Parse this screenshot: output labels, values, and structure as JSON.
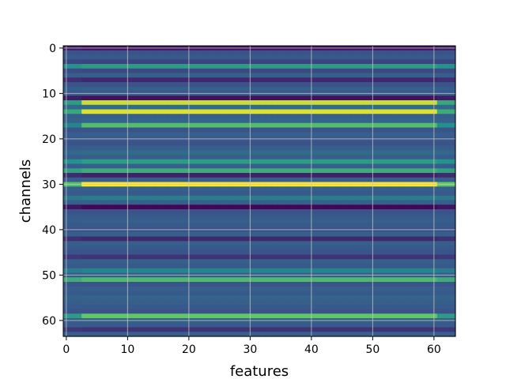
{
  "chart_data": {
    "type": "heatmap",
    "xlabel": "features",
    "ylabel": "channels",
    "x_ticks": [
      0,
      10,
      20,
      30,
      40,
      50,
      60
    ],
    "y_ticks": [
      0,
      10,
      20,
      30,
      40,
      50,
      60
    ],
    "xlim": [
      -0.5,
      63.5
    ],
    "ylim": [
      63.5,
      -0.5
    ],
    "n_features": 64,
    "n_channels": 64,
    "colormap": "viridis",
    "grid": true,
    "channel_levels": [
      0.05,
      0.25,
      0.28,
      0.2,
      0.55,
      0.22,
      0.3,
      0.12,
      0.25,
      0.3,
      0.28,
      0.05,
      0.92,
      0.35,
      0.95,
      0.3,
      0.32,
      0.7,
      0.25,
      0.3,
      0.28,
      0.25,
      0.3,
      0.35,
      0.3,
      0.55,
      0.3,
      0.62,
      0.1,
      0.3,
      1.0,
      0.3,
      0.28,
      0.42,
      0.3,
      0.02,
      0.25,
      0.28,
      0.3,
      0.28,
      0.25,
      0.3,
      0.12,
      0.3,
      0.28,
      0.25,
      0.15,
      0.3,
      0.28,
      0.45,
      0.3,
      0.68,
      0.25,
      0.3,
      0.28,
      0.32,
      0.3,
      0.28,
      0.25,
      0.75,
      0.3,
      0.28,
      0.15,
      0.3
    ],
    "edge_levels": {
      "12": {
        "left": 0.55,
        "right": 0.6
      },
      "14": {
        "left": 0.6,
        "right": 0.62
      },
      "17": {
        "left": 0.45,
        "right": 0.5
      },
      "30": {
        "left": 0.7,
        "right": 0.75
      },
      "59": {
        "left": 0.55,
        "right": 0.55
      }
    }
  }
}
